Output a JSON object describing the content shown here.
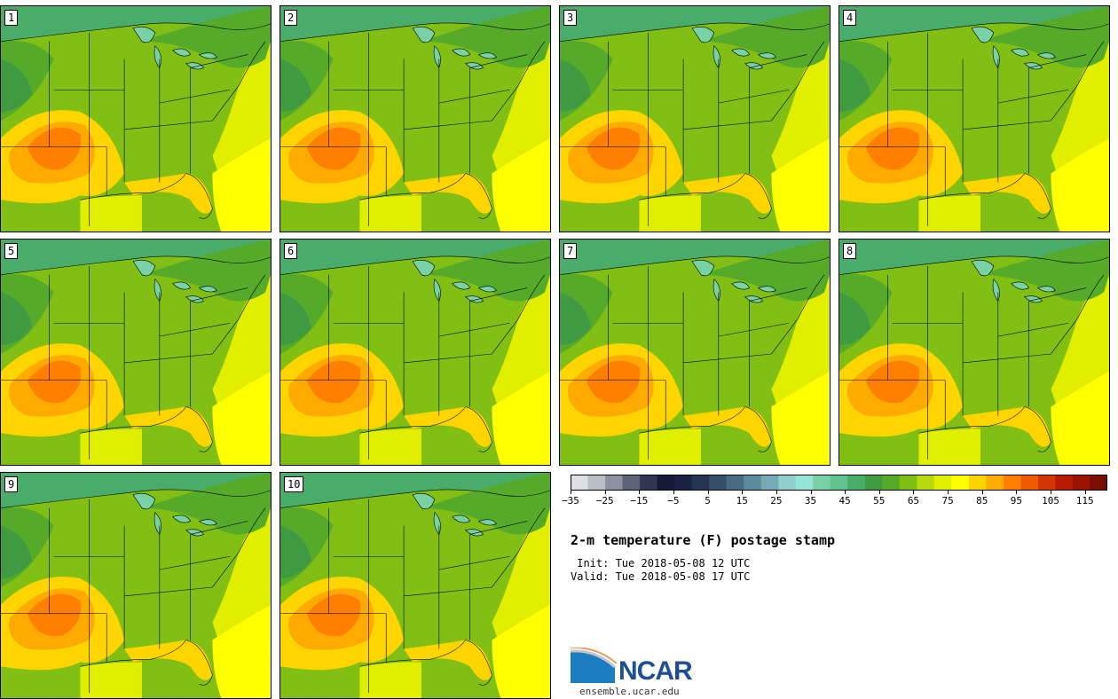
{
  "panels": [
    "1",
    "2",
    "3",
    "4",
    "5",
    "6",
    "7",
    "8",
    "9",
    "10"
  ],
  "legend": {
    "colors": [
      "#dfe0e4",
      "#bcbec6",
      "#8e91a1",
      "#5c6278",
      "#2f3553",
      "#141a36",
      "#1a2345",
      "#243552",
      "#35506a",
      "#476b84",
      "#5b8a9c",
      "#77aab4",
      "#8fd0cc",
      "#96e4d5",
      "#79d2a6",
      "#62c28e",
      "#4aac6a",
      "#3f9a42",
      "#56aa2a",
      "#82bf15",
      "#b5d90a",
      "#e2ee00",
      "#ffff00",
      "#ffd500",
      "#ffaa00",
      "#ff8000",
      "#f05a00",
      "#d43500",
      "#b81c00",
      "#9a1300",
      "#7a0e00"
    ],
    "ticks": [
      "-35",
      "-25",
      "-15",
      "-5",
      "5",
      "15",
      "25",
      "35",
      "45",
      "55",
      "65",
      "75",
      "85",
      "95",
      "105",
      "115"
    ]
  },
  "title": "2-m temperature (F) postage stamp",
  "init": " Init: Tue 2018-05-08 12 UTC",
  "valid": "Valid: Tue 2018-05-08 17 UTC",
  "logo": {
    "text": "NCAR",
    "url": "ensemble.ucar.edu"
  },
  "map_colors": {
    "ocean_south": "#ffff00",
    "ocean_gulf": "#e2ee00",
    "hot": "#ff8000",
    "warm": "#ffaa00",
    "mild": "#ffd500",
    "cool_green": "#82bf15",
    "green": "#56aa2a",
    "dark_green": "#3f9a42",
    "lake": "#79d2a6",
    "canada": "#4aac6a"
  }
}
